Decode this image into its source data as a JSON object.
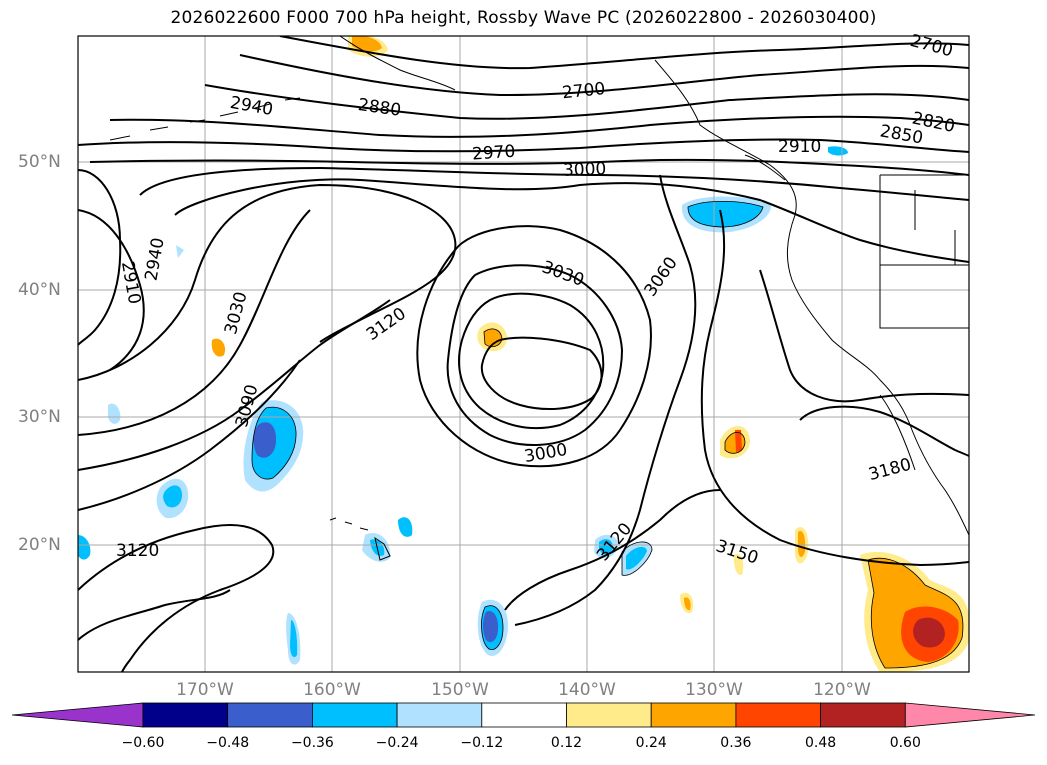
{
  "title": "2026022600 F000 700 hPa height, Rossby Wave PC (2026022800 - 2026030400)",
  "lat_labels": [
    "50°N",
    "40°N",
    "30°N",
    "20°N"
  ],
  "lon_labels": [
    "170°W",
    "160°W",
    "150°W",
    "140°W",
    "130°W",
    "120°W"
  ],
  "colorbar": {
    "ticks": [
      "−0.60",
      "−0.48",
      "−0.36",
      "−0.24",
      "−0.12",
      "0.12",
      "0.24",
      "0.36",
      "0.48",
      "0.60"
    ],
    "colors": [
      "#9933cc",
      "#00008b",
      "#3a5fcd",
      "#00bfff",
      "#b0e2ff",
      "#ffffff",
      "#ffeb8a",
      "#ffa500",
      "#ff4500",
      "#b22222",
      "#ff88aa"
    ]
  },
  "contour_labels": [
    {
      "text": "2940"
    },
    {
      "text": "2880"
    },
    {
      "text": "2700"
    },
    {
      "text": "2700"
    },
    {
      "text": "2820"
    },
    {
      "text": "2850"
    },
    {
      "text": "2910"
    },
    {
      "text": "2970"
    },
    {
      "text": "3000"
    },
    {
      "text": "2910"
    },
    {
      "text": "2940"
    },
    {
      "text": "3030"
    },
    {
      "text": "3120"
    },
    {
      "text": "3030"
    },
    {
      "text": "3060"
    },
    {
      "text": "3090"
    },
    {
      "text": "3000"
    },
    {
      "text": "3180"
    },
    {
      "text": "3120"
    },
    {
      "text": "3120"
    },
    {
      "text": "3150"
    }
  ]
}
